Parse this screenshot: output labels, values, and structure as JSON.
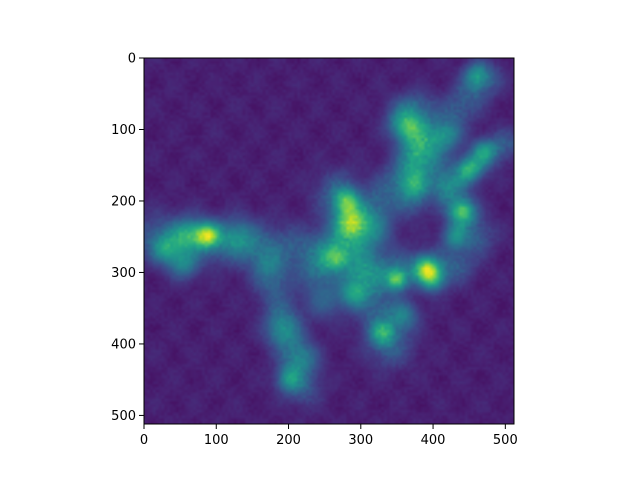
{
  "chart_data": {
    "type": "heatmap",
    "title": "",
    "xlabel": "",
    "ylabel": "",
    "colormap": "viridis",
    "image_size": [
      512,
      512
    ],
    "xlim": [
      0,
      512
    ],
    "ylim": [
      512,
      0
    ],
    "y_axis_inverted": true,
    "grid": false,
    "legend": "none",
    "x_ticks": [
      0,
      100,
      200,
      300,
      400,
      500
    ],
    "y_ticks": [
      0,
      100,
      200,
      300,
      400,
      500
    ],
    "x_tick_labels": [
      "0",
      "100",
      "200",
      "300",
      "400",
      "500"
    ],
    "y_tick_labels": [
      "0",
      "100",
      "200",
      "300",
      "400",
      "500"
    ],
    "intensity_range": [
      0,
      1
    ],
    "background_level": 0.12,
    "hotspots": [
      {
        "x": 88,
        "y": 248,
        "r": 12,
        "v": 1.0
      },
      {
        "x": 60,
        "y": 248,
        "r": 16,
        "v": 0.55
      },
      {
        "x": 30,
        "y": 268,
        "r": 14,
        "v": 0.55
      },
      {
        "x": 55,
        "y": 290,
        "r": 14,
        "v": 0.5
      },
      {
        "x": 130,
        "y": 250,
        "r": 18,
        "v": 0.4
      },
      {
        "x": 170,
        "y": 290,
        "r": 16,
        "v": 0.35
      },
      {
        "x": 280,
        "y": 200,
        "r": 12,
        "v": 0.75
      },
      {
        "x": 285,
        "y": 230,
        "r": 14,
        "v": 0.6
      },
      {
        "x": 265,
        "y": 280,
        "r": 12,
        "v": 0.55
      },
      {
        "x": 290,
        "y": 330,
        "r": 14,
        "v": 0.55
      },
      {
        "x": 360,
        "y": 95,
        "r": 14,
        "v": 0.55
      },
      {
        "x": 375,
        "y": 180,
        "r": 14,
        "v": 0.45
      },
      {
        "x": 350,
        "y": 310,
        "r": 10,
        "v": 0.85
      },
      {
        "x": 390,
        "y": 295,
        "r": 12,
        "v": 0.85
      },
      {
        "x": 400,
        "y": 310,
        "r": 12,
        "v": 0.65
      },
      {
        "x": 330,
        "y": 385,
        "r": 12,
        "v": 0.6
      },
      {
        "x": 360,
        "y": 360,
        "r": 14,
        "v": 0.45
      },
      {
        "x": 440,
        "y": 215,
        "r": 12,
        "v": 0.75
      },
      {
        "x": 450,
        "y": 155,
        "r": 12,
        "v": 0.6
      },
      {
        "x": 470,
        "y": 130,
        "r": 12,
        "v": 0.55
      },
      {
        "x": 460,
        "y": 25,
        "r": 12,
        "v": 0.5
      },
      {
        "x": 420,
        "y": 110,
        "r": 14,
        "v": 0.4
      },
      {
        "x": 430,
        "y": 250,
        "r": 12,
        "v": 0.55
      },
      {
        "x": 200,
        "y": 450,
        "r": 12,
        "v": 0.55
      },
      {
        "x": 190,
        "y": 380,
        "r": 16,
        "v": 0.4
      },
      {
        "x": 220,
        "y": 420,
        "r": 16,
        "v": 0.35
      },
      {
        "x": 320,
        "y": 240,
        "r": 20,
        "v": 0.35
      },
      {
        "x": 250,
        "y": 340,
        "r": 18,
        "v": 0.35
      }
    ],
    "streaks": [
      {
        "x1": 20,
        "y1": 250,
        "x2": 240,
        "y2": 270,
        "w": 22,
        "v": 0.38
      },
      {
        "x1": 240,
        "y1": 300,
        "x2": 470,
        "y2": 30,
        "w": 18,
        "v": 0.36
      },
      {
        "x1": 270,
        "y1": 190,
        "x2": 340,
        "y2": 400,
        "w": 22,
        "v": 0.4
      },
      {
        "x1": 360,
        "y1": 80,
        "x2": 460,
        "y2": 250,
        "w": 18,
        "v": 0.36
      },
      {
        "x1": 420,
        "y1": 180,
        "x2": 500,
        "y2": 120,
        "w": 14,
        "v": 0.35
      },
      {
        "x1": 300,
        "y1": 300,
        "x2": 430,
        "y2": 290,
        "w": 18,
        "v": 0.38
      },
      {
        "x1": 180,
        "y1": 320,
        "x2": 220,
        "y2": 460,
        "w": 18,
        "v": 0.34
      },
      {
        "x1": 380,
        "y1": 70,
        "x2": 370,
        "y2": 200,
        "w": 16,
        "v": 0.33
      }
    ]
  }
}
